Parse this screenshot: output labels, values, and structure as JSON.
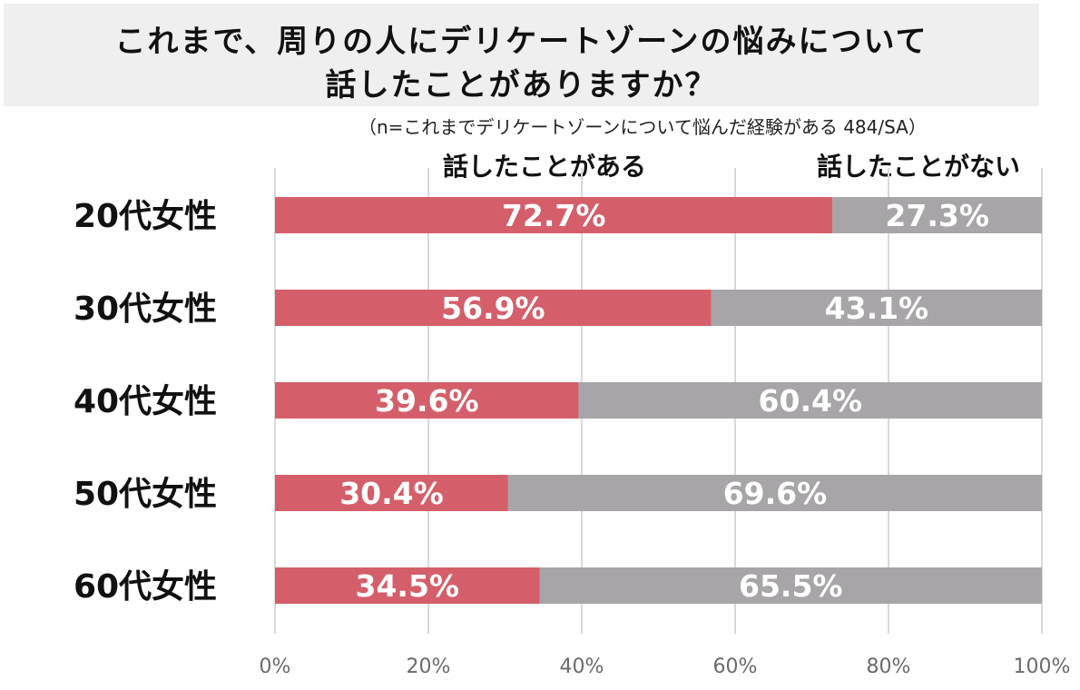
{
  "title": {
    "line1": "これまで、周りの人にデリケートゾーンの悩みについて",
    "line2": "話したことがありますか？"
  },
  "subtitle": "（n=これまでデリケートゾーンについて悩んだ経験がある 484/SA）",
  "colors": {
    "yes": "#d45f6a",
    "no": "#a8a5a8",
    "grid": "#d9d9d9",
    "tick": "#6b6b6b"
  },
  "chart_data": {
    "type": "bar",
    "orientation": "horizontal",
    "stacked": true,
    "categories": [
      "20代女性",
      "30代女性",
      "40代女性",
      "50代女性",
      "60代女性"
    ],
    "series": [
      {
        "name": "話したことがある",
        "values": [
          72.7,
          56.9,
          39.6,
          30.4,
          34.5
        ],
        "labels": [
          "72.7%",
          "56.9%",
          "39.6%",
          "30.4%",
          "34.5%"
        ]
      },
      {
        "name": "話したことがない",
        "values": [
          27.3,
          43.1,
          60.4,
          69.6,
          65.5
        ],
        "labels": [
          "27.3%",
          "43.1%",
          "60.4%",
          "69.6%",
          "65.5%"
        ]
      }
    ],
    "xlim": [
      0,
      100
    ],
    "xticks": [
      "0%",
      "20%",
      "40%",
      "60%",
      "80%",
      "100%"
    ],
    "grid": true,
    "legend_position": "top"
  }
}
